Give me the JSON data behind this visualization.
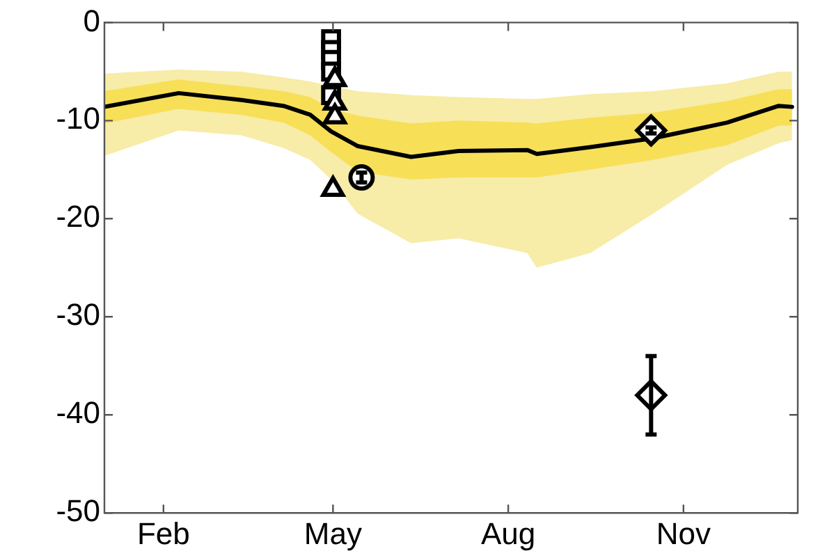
{
  "chart_data": {
    "type": "line",
    "xlim": [
      "--01-01",
      "--12-31"
    ],
    "xticks": [
      {
        "value": "--02-01",
        "label": "Feb"
      },
      {
        "value": "--05-01",
        "label": "May"
      },
      {
        "value": "--08-01",
        "label": "Aug"
      },
      {
        "value": "--11-01",
        "label": "Nov"
      }
    ],
    "ylim": [
      -50,
      0
    ],
    "yticks": [
      -50,
      -40,
      -30,
      -20,
      -10,
      0
    ],
    "grid": false,
    "legend": false,
    "series": [
      {
        "type": "area",
        "color": "#f7eca8",
        "x": [
          "--01-01",
          "--02-09",
          "--03-14",
          "--04-05",
          "--04-19",
          "--04-30",
          "--05-14",
          "--06-11",
          "--07-06",
          "--08-11",
          "--08-16",
          "--09-13",
          "--10-16",
          "--11-24",
          "--12-21",
          "--12-28"
        ],
        "values": [
          null,
          null,
          null,
          null,
          null,
          null,
          null,
          null,
          null,
          null,
          null,
          null,
          null,
          null,
          null,
          null
        ],
        "lower": [
          -13.6,
          -11,
          -11.5,
          -12.8,
          -14,
          -16,
          -19.5,
          -22.5,
          -22,
          -23.5,
          -25,
          -23.5,
          -19.5,
          -14.5,
          -12.3,
          -12
        ],
        "upper": [
          -5.2,
          -4.8,
          -5,
          -5.6,
          -6,
          -6.5,
          -7,
          -7.4,
          -7.6,
          -7.8,
          -7.8,
          -7.3,
          -7,
          -6.2,
          -5,
          -5
        ]
      },
      {
        "type": "area",
        "color": "#f7df58",
        "x": [
          "--01-01",
          "--02-09",
          "--03-14",
          "--04-05",
          "--04-19",
          "--04-30",
          "--05-14",
          "--06-11",
          "--07-06",
          "--08-11",
          "--08-16",
          "--09-13",
          "--10-16",
          "--11-24",
          "--12-21",
          "--12-28"
        ],
        "values": [
          null,
          null,
          null,
          null,
          null,
          null,
          null,
          null,
          null,
          null,
          null,
          null,
          null,
          null,
          null,
          null
        ],
        "lower": [
          -10.3,
          -8.8,
          -9.4,
          -10.2,
          -11.5,
          -13.2,
          -15.2,
          -16,
          -15.8,
          -15.8,
          -15.8,
          -15,
          -14,
          -12.5,
          -10.5,
          -10.5
        ],
        "upper": [
          -7,
          -5.8,
          -6.5,
          -7,
          -7.6,
          -8.8,
          -9.5,
          -10.3,
          -10,
          -10.2,
          -10.3,
          -9.7,
          -9.2,
          -8,
          -6.8,
          -6.8
        ]
      },
      {
        "color": "#000000",
        "marker": "none",
        "line_style": "solid",
        "x": [
          "--01-01",
          "--02-09",
          "--03-14",
          "--04-05",
          "--04-19",
          "--04-30",
          "--05-14",
          "--06-11",
          "--07-06",
          "--08-11",
          "--08-16",
          "--09-13",
          "--10-16",
          "--11-24",
          "--12-21",
          "--12-28"
        ],
        "values": [
          -8.6,
          -7.2,
          -7.9,
          -8.5,
          -9.4,
          -11.1,
          -12.6,
          -13.7,
          -13.1,
          -13,
          -13.4,
          -12.7,
          -11.8,
          -10.2,
          -8.5,
          -8.6
        ]
      },
      {
        "type": "scatter",
        "color": "#000000",
        "marker": "square",
        "x": [
          "--04-30",
          "--04-30",
          "--04-30",
          "--04-30",
          "--04-30"
        ],
        "values": [
          -1.7,
          -2.8,
          -3.8,
          -5,
          -7.4
        ]
      },
      {
        "type": "scatter",
        "color": "#000000",
        "marker": "triangle",
        "x": [
          "--05-02",
          "--05-02",
          "--05-02",
          "--05-01"
        ],
        "values": [
          -5.8,
          -8.2,
          -9.6,
          -17
        ]
      },
      {
        "type": "scatter",
        "color": "#000000",
        "marker": "circle",
        "x": [
          "--05-16"
        ],
        "values": [
          -15.8
        ],
        "errors": [
          0.5
        ]
      },
      {
        "type": "scatter",
        "color": "#000000",
        "marker": "diamond",
        "x": [
          "--10-15",
          "--10-15"
        ],
        "values": [
          -11,
          -38
        ],
        "errors": [
          0.3,
          4
        ]
      }
    ]
  }
}
